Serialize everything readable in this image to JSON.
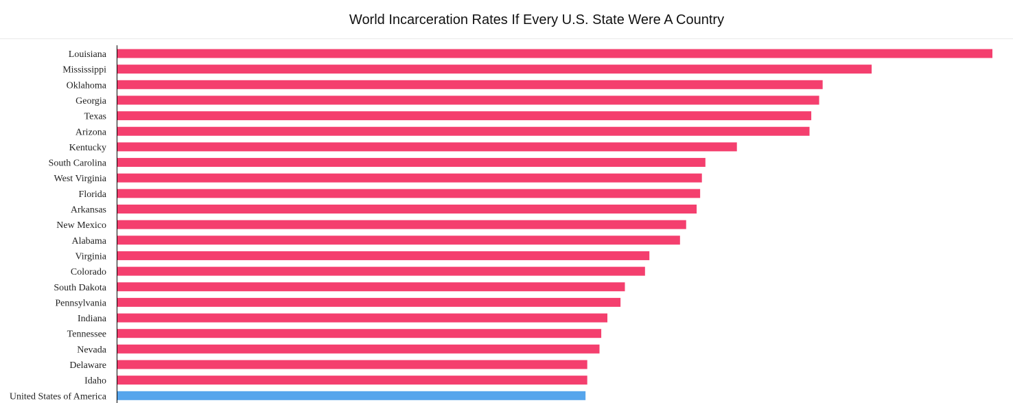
{
  "title": "World Incarceration Rates If Every U.S. State Were A Country",
  "colors": {
    "state_bar": "#f43f6e",
    "us_bar": "#56a5ec",
    "axis": "#000000"
  },
  "chart_data": {
    "type": "bar",
    "orientation": "horizontal",
    "title": "World Incarceration Rates If Every U.S. State Were A Country",
    "xlabel": "",
    "ylabel": "",
    "xlim": [
      0,
      1000
    ],
    "grid": false,
    "categories": [
      "Louisiana",
      "Mississippi",
      "Oklahoma",
      "Georgia",
      "Texas",
      "Arizona",
      "Kentucky",
      "South Carolina",
      "West Virginia",
      "Florida",
      "Arkansas",
      "New Mexico",
      "Alabama",
      "Virginia",
      "Colorado",
      "South Dakota",
      "Pennsylvania",
      "Indiana",
      "Tennessee",
      "Nevada",
      "Delaware",
      "Idaho",
      "United States of America"
    ],
    "values": [
      1000,
      862,
      806,
      802,
      793,
      791,
      708,
      672,
      668,
      666,
      662,
      650,
      643,
      608,
      603,
      580,
      575,
      560,
      553,
      551,
      537,
      537,
      535
    ],
    "highlight": "United States of America"
  }
}
